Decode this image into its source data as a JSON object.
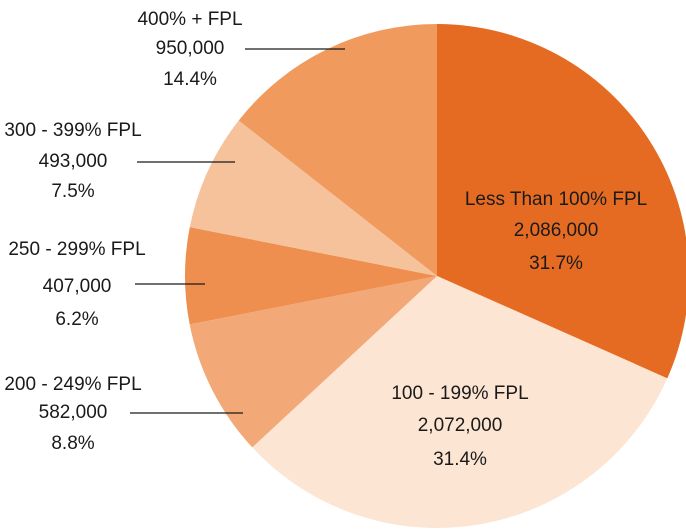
{
  "chart_data": {
    "type": "pie",
    "categories": [
      "Less Than 100% FPL",
      "100 - 199% FPL",
      "200 - 249% FPL",
      "250 - 299% FPL",
      "300 - 399% FPL",
      "400%  +  FPL"
    ],
    "values": [
      2086000,
      2072000,
      582000,
      407000,
      493000,
      950000
    ],
    "value_labels": [
      "2,086,000",
      "2,072,000",
      "582,000",
      "407,000",
      "493,000",
      "950,000"
    ],
    "percent_labels": [
      "31.7%",
      "31.4%",
      "8.8%",
      "6.2%",
      "7.5%",
      "14.4%"
    ],
    "colors": [
      "#e66b22",
      "#fde5d3",
      "#f2a877",
      "#ee8f4f",
      "#f6c29b",
      "#f09a5e"
    ]
  }
}
